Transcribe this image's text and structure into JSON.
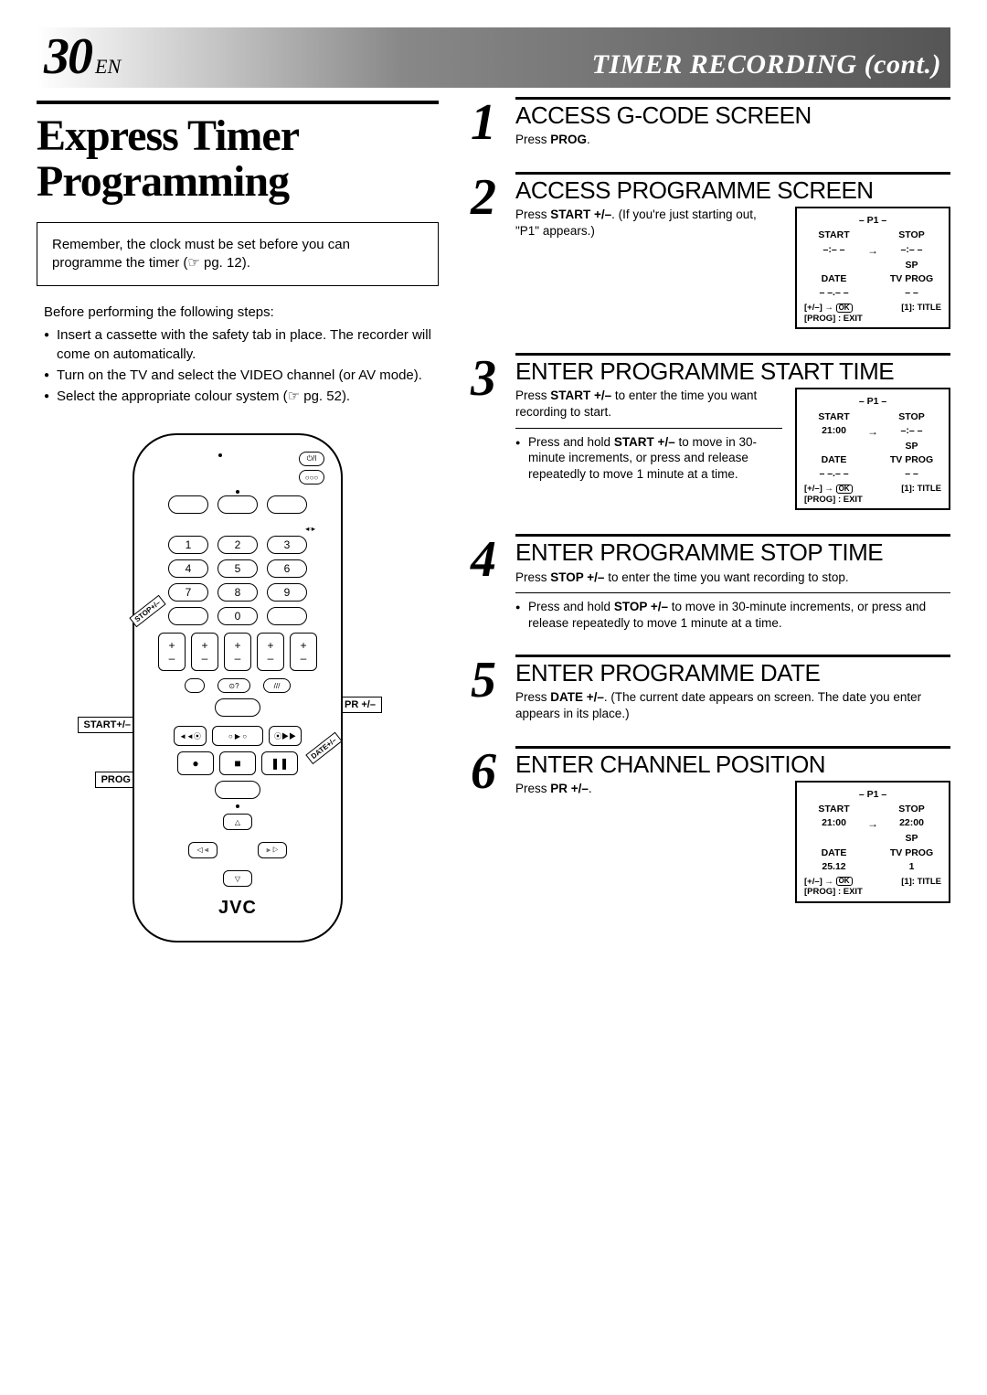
{
  "header": {
    "page_number": "30",
    "lang": "EN",
    "title": "TIMER RECORDING (cont.)"
  },
  "main_title": "Express Timer Programming",
  "note_box": "Remember, the clock must be set before you can programme the timer (☞ pg. 12).",
  "pre_steps": {
    "intro": "Before performing the following steps:",
    "items": [
      "Insert a cassette with the safety tab in place. The recorder will come on automatically.",
      "Turn on the TV and select the VIDEO channel (or AV mode).",
      "Select the appropriate colour system (☞ pg. 52)."
    ]
  },
  "remote": {
    "brand": "JVC",
    "labels": {
      "startplus": "START+/–",
      "prog": "PROG",
      "prplus": "PR +/–",
      "stopplus": "STOP+/–",
      "dateplus": "DATE+/–"
    },
    "numbers": [
      "1",
      "2",
      "3",
      "4",
      "5",
      "6",
      "7",
      "8",
      "9",
      "0"
    ]
  },
  "steps": [
    {
      "num": "1",
      "title": "ACCESS G-CODE SCREEN",
      "text_html": "Press <b>PROG</b>.",
      "lcd": null
    },
    {
      "num": "2",
      "title": "ACCESS PROGRAMME SCREEN",
      "text_html": "Press <b>START +/–</b>. (If you're just starting out, \"P1\" appears.)",
      "lcd": {
        "title": "– P1 –",
        "start_label": "START",
        "start_val": "–:– –",
        "stop_label": "STOP",
        "stop_val": "–:– –",
        "sp": "SP",
        "date_label": "DATE",
        "date_val": "– –.– –",
        "tvprog_label": "TV PROG",
        "tvprog_val": "– –",
        "title_line": "[1]: TITLE",
        "footer1": "[+/–] → ",
        "footer2": "[PROG] : EXIT"
      }
    },
    {
      "num": "3",
      "title": "ENTER PROGRAMME START TIME",
      "text_html": "Press <b>START +/–</b> to enter the time you want recording to start.",
      "bullet_html": "Press and hold <b>START +/–</b> to move in 30-minute increments, or press and release repeatedly to move 1 minute at a time.",
      "lcd": {
        "title": "– P1 –",
        "start_label": "START",
        "start_val": "21:00",
        "stop_label": "STOP",
        "stop_val": "–:– –",
        "sp": "SP",
        "date_label": "DATE",
        "date_val": "– –.– –",
        "tvprog_label": "TV PROG",
        "tvprog_val": "– –",
        "title_line": "[1]: TITLE",
        "footer1": "[+/–] → ",
        "footer2": "[PROG] : EXIT"
      }
    },
    {
      "num": "4",
      "title": "ENTER PROGRAMME STOP TIME",
      "text_html": "Press <b>STOP +/–</b> to enter the time you want recording to stop.",
      "bullet_html": "Press and hold <b>STOP +/–</b> to move in 30-minute increments, or press and release repeatedly to move 1 minute at a time.",
      "lcd": null
    },
    {
      "num": "5",
      "title": "ENTER PROGRAMME DATE",
      "text_html": "Press <b>DATE +/–</b>. (The current date appears on screen. The date you enter appears in its place.)",
      "lcd": null
    },
    {
      "num": "6",
      "title": "ENTER CHANNEL POSITION",
      "text_html": "Press <b>PR +/–</b>.",
      "lcd": {
        "title": "– P1 –",
        "start_label": "START",
        "start_val": "21:00",
        "stop_label": "STOP",
        "stop_val": "22:00",
        "sp": "SP",
        "date_label": "DATE",
        "date_val": "25.12",
        "tvprog_label": "TV PROG",
        "tvprog_val": "1",
        "title_line": "[1]: TITLE",
        "footer1": "[+/–] → ",
        "footer2": "[PROG] : EXIT"
      }
    }
  ]
}
